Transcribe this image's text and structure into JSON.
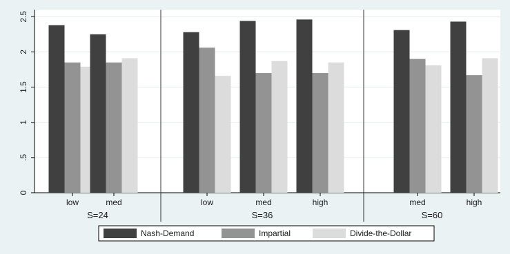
{
  "chart_data": {
    "type": "bar",
    "ylim": [
      0,
      2.6
    ],
    "yticks": [
      0,
      0.5,
      1,
      1.5,
      2,
      2.5
    ],
    "ytick_labels": [
      "0",
      ".5",
      "1",
      "1.5",
      "2",
      "2.5"
    ],
    "grid": true,
    "legend_position": "bottom",
    "series": [
      {
        "name": "Nash-Demand",
        "color": "#404040"
      },
      {
        "name": "Impartial",
        "color": "#939393"
      },
      {
        "name": "Divide-the-Dollar",
        "color": "#dcdcdc"
      }
    ],
    "panels": [
      {
        "label": "S=24",
        "categories": [
          "low",
          "med"
        ],
        "values": [
          [
            2.38,
            1.85,
            1.79
          ],
          [
            2.25,
            1.85,
            1.91
          ]
        ]
      },
      {
        "label": "S=36",
        "categories": [
          "low",
          "med",
          "high"
        ],
        "values": [
          [
            2.28,
            2.06,
            1.66
          ],
          [
            2.44,
            1.7,
            1.87
          ],
          [
            2.46,
            1.7,
            1.85
          ]
        ]
      },
      {
        "label": "S=60",
        "categories": [
          "med",
          "high"
        ],
        "values": [
          [
            2.31,
            1.9,
            1.81
          ],
          [
            2.43,
            1.67,
            1.91
          ]
        ]
      }
    ]
  }
}
